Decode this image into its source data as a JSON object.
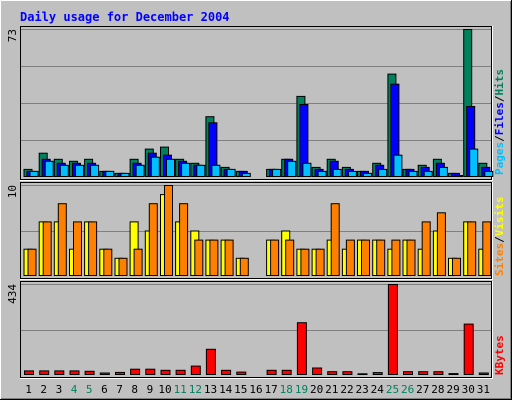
{
  "title": "Daily usage for December 2004",
  "colors": {
    "background": "#c0c0c0",
    "title": "#0000ff",
    "hits": "#00805c",
    "files": "#0000ff",
    "pages": "#00c0ff",
    "visits": "#ffff00",
    "sites": "#ff8000",
    "kbytes": "#ff0000",
    "weekend_day": "#00805c",
    "weekday": "#000000"
  },
  "chart_data": [
    {
      "type": "bar",
      "panel": "hits-files-pages",
      "ymax_label": "73",
      "legend": [
        "Pages",
        "/",
        "Files",
        "/",
        "Hits"
      ],
      "categories": [
        "1",
        "2",
        "3",
        "4",
        "5",
        "6",
        "7",
        "8",
        "9",
        "10",
        "11",
        "12",
        "13",
        "14",
        "15",
        "16",
        "17",
        "18",
        "19",
        "20",
        "21",
        "22",
        "23",
        "24",
        "25",
        "26",
        "27",
        "28",
        "29",
        "30",
        "31"
      ],
      "series": [
        {
          "name": "Hits",
          "values": [
            4,
            12,
            9,
            8,
            9,
            3,
            2,
            9,
            14,
            15,
            9,
            7,
            30,
            5,
            3,
            0,
            4,
            9,
            40,
            5,
            9,
            5,
            3,
            7,
            51,
            4,
            6,
            9,
            2,
            73,
            7
          ]
        },
        {
          "name": "Files",
          "values": [
            3,
            9,
            7,
            7,
            7,
            3,
            2,
            7,
            12,
            11,
            8,
            6,
            27,
            4,
            3,
            0,
            4,
            9,
            36,
            4,
            8,
            4,
            3,
            6,
            46,
            4,
            5,
            7,
            2,
            35,
            5
          ]
        },
        {
          "name": "Pages",
          "values": [
            3,
            8,
            6,
            6,
            6,
            3,
            2,
            6,
            10,
            9,
            7,
            6,
            6,
            4,
            2,
            0,
            4,
            8,
            7,
            3,
            4,
            3,
            2,
            4,
            11,
            3,
            3,
            5,
            1,
            14,
            3
          ]
        }
      ]
    },
    {
      "type": "bar",
      "panel": "visits-sites",
      "ymax_label": "10",
      "legend": [
        "Sites",
        "/",
        "Visits"
      ],
      "categories": [
        "1",
        "2",
        "3",
        "4",
        "5",
        "6",
        "7",
        "8",
        "9",
        "10",
        "11",
        "12",
        "13",
        "14",
        "15",
        "16",
        "17",
        "18",
        "19",
        "20",
        "21",
        "22",
        "23",
        "24",
        "25",
        "26",
        "27",
        "28",
        "29",
        "30",
        "31"
      ],
      "series": [
        {
          "name": "Visits",
          "values": [
            3,
            6,
            6,
            3,
            6,
            3,
            2,
            6,
            5,
            9,
            6,
            5,
            4,
            4,
            2,
            0,
            4,
            5,
            3,
            3,
            4,
            3,
            4,
            4,
            3,
            4,
            3,
            5,
            2,
            6,
            3
          ]
        },
        {
          "name": "Sites",
          "values": [
            3,
            6,
            8,
            6,
            6,
            3,
            2,
            3,
            8,
            10,
            8,
            4,
            4,
            4,
            2,
            0,
            4,
            4,
            3,
            3,
            8,
            4,
            4,
            4,
            4,
            4,
            6,
            7,
            2,
            6,
            6
          ]
        }
      ]
    },
    {
      "type": "bar",
      "panel": "kbytes",
      "ymax_label": "434",
      "legend": [
        "KBytes"
      ],
      "categories": [
        "1",
        "2",
        "3",
        "4",
        "5",
        "6",
        "7",
        "8",
        "9",
        "10",
        "11",
        "12",
        "13",
        "14",
        "15",
        "16",
        "17",
        "18",
        "19",
        "20",
        "21",
        "22",
        "23",
        "24",
        "25",
        "26",
        "27",
        "28",
        "29",
        "30",
        "31"
      ],
      "series": [
        {
          "name": "KBytes",
          "values": [
            22,
            22,
            22,
            22,
            20,
            12,
            15,
            30,
            30,
            25,
            25,
            45,
            125,
            25,
            16,
            0,
            25,
            25,
            252,
            36,
            18,
            18,
            8,
            14,
            434,
            18,
            18,
            18,
            9,
            245,
            12
          ]
        }
      ]
    }
  ],
  "day_labels": [
    "1",
    "2",
    "3",
    "4",
    "5",
    "6",
    "7",
    "8",
    "9",
    "10",
    "11",
    "12",
    "13",
    "14",
    "15",
    "16",
    "17",
    "18",
    "19",
    "20",
    "21",
    "22",
    "23",
    "24",
    "25",
    "26",
    "27",
    "28",
    "29",
    "30",
    "31"
  ],
  "weekend_days": [
    4,
    5,
    11,
    12,
    18,
    19,
    25,
    26
  ]
}
